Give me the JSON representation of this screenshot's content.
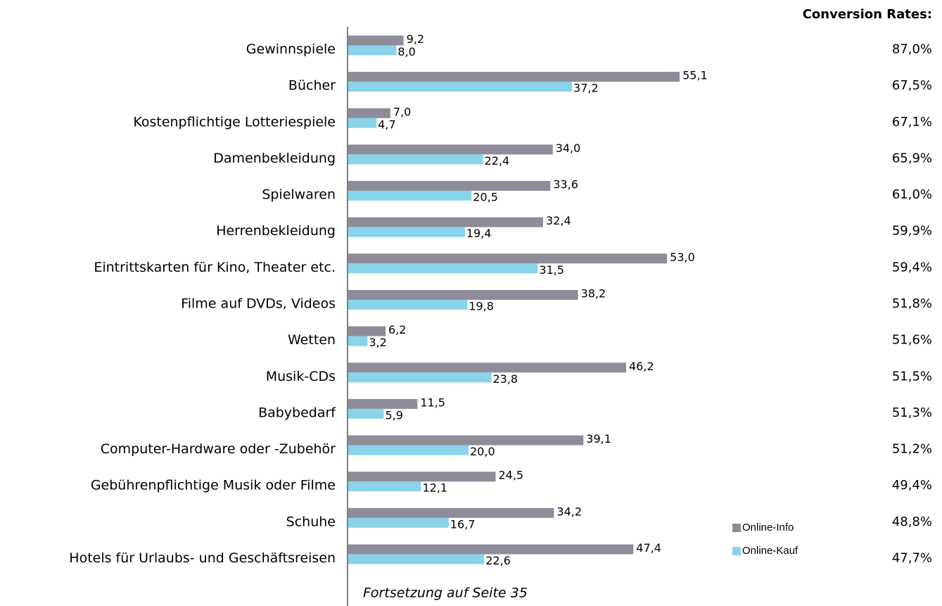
{
  "chart_data": {
    "type": "bar",
    "orientation": "horizontal",
    "categories": [
      "Gewinnspiele",
      "Bücher",
      "Kostenpflichtige Lotteriespiele",
      "Damenbekleidung",
      "Spielwaren",
      "Herrenbekleidung",
      "Eintrittskarten für Kino, Theater etc.",
      "Filme auf DVDs, Videos",
      "Wetten",
      "Musik-CDs",
      "Babybedarf",
      "Computer-Hardware oder -Zubehör",
      "Gebührenpflichtige Musik oder Filme",
      "Schuhe",
      "Hotels für Urlaubs- und Geschäftsreisen"
    ],
    "series": [
      {
        "name": "Online-Info",
        "color": "#8e8c99",
        "values": [
          9.2,
          55.1,
          7.0,
          34.0,
          33.6,
          32.4,
          53.0,
          38.2,
          6.2,
          46.2,
          11.5,
          39.1,
          24.5,
          34.2,
          47.4
        ],
        "value_labels": [
          "9,2",
          "55,1",
          "7,0",
          "34,0",
          "33,6",
          "32,4",
          "53,0",
          "38,2",
          "6,2",
          "46,2",
          "11,5",
          "39,1",
          "24,5",
          "34,2",
          "47,4"
        ]
      },
      {
        "name": "Online-Kauf",
        "color": "#89d4ea",
        "values": [
          8.0,
          37.2,
          4.7,
          22.4,
          20.5,
          19.4,
          31.5,
          19.8,
          3.2,
          23.8,
          5.9,
          20.0,
          12.1,
          16.7,
          22.6
        ],
        "value_labels": [
          "8,0",
          "37,2",
          "4,7",
          "22,4",
          "20,5",
          "19,4",
          "31,5",
          "19,8",
          "3,2",
          "23,8",
          "5,9",
          "20,0",
          "12,1",
          "16,7",
          "22,6"
        ]
      }
    ],
    "xlim": [
      0,
      60
    ],
    "conversion_rates_title": "Conversion Rates:",
    "conversion_rates": [
      "87,0%",
      "67,5%",
      "67,1%",
      "65,9%",
      "61,0%",
      "59,9%",
      "59,4%",
      "51,8%",
      "51,6%",
      "51,5%",
      "51,3%",
      "51,2%",
      "49,4%",
      "48,8%",
      "47,7%"
    ],
    "note": "Fortsetzung auf Seite 35",
    "legend": "bottom-right"
  }
}
